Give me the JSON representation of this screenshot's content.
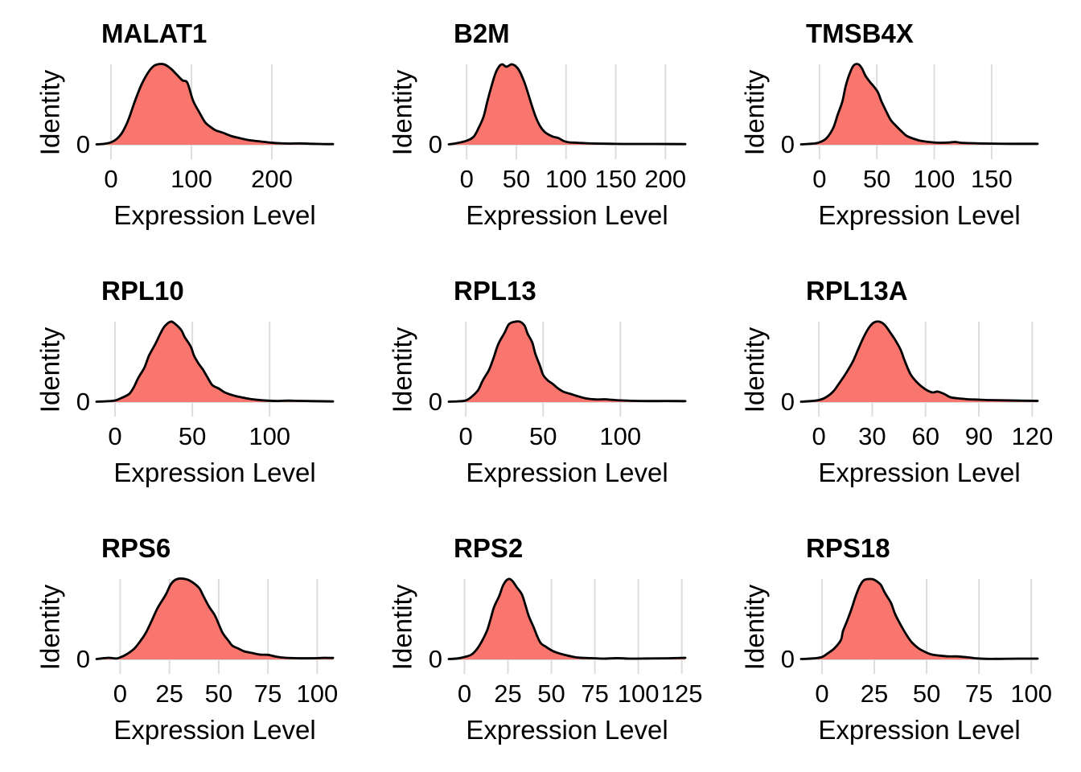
{
  "figure": {
    "kind": "ridge-density-grid",
    "rows": 3,
    "cols": 3,
    "style": {
      "fill_color": "#F8766D",
      "outline_color": "#000000",
      "gridline_color": "#DDDDDD",
      "text_color": "#000000",
      "background": "#FFFFFF"
    }
  },
  "chart_data": [
    {
      "type": "area",
      "title": "MALAT1",
      "xlabel": "Expression Level",
      "ylabel": "Identity",
      "y_ticks": [
        "0"
      ],
      "x_ticks": [
        0,
        100,
        200
      ],
      "xlim": [
        -18,
        276
      ],
      "grid": "vertical-major",
      "legend": "none",
      "density": [
        [
          -18,
          0.005
        ],
        [
          -10,
          0.01
        ],
        [
          0,
          0.03
        ],
        [
          8,
          0.08
        ],
        [
          15,
          0.17
        ],
        [
          22,
          0.32
        ],
        [
          30,
          0.55
        ],
        [
          38,
          0.75
        ],
        [
          45,
          0.88
        ],
        [
          52,
          0.97
        ],
        [
          58,
          1.0
        ],
        [
          66,
          1.0
        ],
        [
          74,
          0.95
        ],
        [
          82,
          0.87
        ],
        [
          89,
          0.8
        ],
        [
          95,
          0.77
        ],
        [
          102,
          0.55
        ],
        [
          110,
          0.4
        ],
        [
          117,
          0.28
        ],
        [
          124,
          0.22
        ],
        [
          130,
          0.18
        ],
        [
          139,
          0.15
        ],
        [
          149,
          0.11
        ],
        [
          159,
          0.085
        ],
        [
          170,
          0.06
        ],
        [
          182,
          0.045
        ],
        [
          195,
          0.03
        ],
        [
          208,
          0.02
        ],
        [
          222,
          0.015
        ],
        [
          235,
          0.017
        ],
        [
          250,
          0.012
        ],
        [
          263,
          0.009
        ],
        [
          276,
          0.008
        ]
      ]
    },
    {
      "type": "area",
      "title": "B2M",
      "xlabel": "Expression Level",
      "ylabel": "Identity",
      "y_ticks": [
        "0"
      ],
      "x_ticks": [
        0,
        50,
        100,
        150,
        200
      ],
      "xlim": [
        -18,
        220
      ],
      "grid": "vertical-major",
      "legend": "none",
      "density": [
        [
          -18,
          0.005
        ],
        [
          -10,
          0.02
        ],
        [
          0,
          0.05
        ],
        [
          7,
          0.1
        ],
        [
          12,
          0.21
        ],
        [
          17,
          0.35
        ],
        [
          21,
          0.55
        ],
        [
          25,
          0.73
        ],
        [
          29,
          0.89
        ],
        [
          33,
          0.98
        ],
        [
          36,
          1.0
        ],
        [
          40,
          0.97
        ],
        [
          45,
          1.0
        ],
        [
          49,
          0.98
        ],
        [
          53,
          0.92
        ],
        [
          58,
          0.78
        ],
        [
          62,
          0.63
        ],
        [
          66,
          0.47
        ],
        [
          70,
          0.33
        ],
        [
          74,
          0.23
        ],
        [
          78,
          0.165
        ],
        [
          82,
          0.13
        ],
        [
          87,
          0.1
        ],
        [
          92,
          0.085
        ],
        [
          98,
          0.045
        ],
        [
          103,
          0.03
        ],
        [
          111,
          0.025
        ],
        [
          119,
          0.02
        ],
        [
          130,
          0.015
        ],
        [
          146,
          0.012
        ],
        [
          162,
          0.01
        ],
        [
          190,
          0.01
        ],
        [
          220,
          0.008
        ]
      ]
    },
    {
      "type": "area",
      "title": "TMSB4X",
      "xlabel": "Expression Level",
      "ylabel": "Identity",
      "y_ticks": [
        "0"
      ],
      "x_ticks": [
        0,
        50,
        100,
        150
      ],
      "xlim": [
        -16,
        190
      ],
      "grid": "vertical-major",
      "legend": "none",
      "density": [
        [
          -16,
          0.005
        ],
        [
          -5,
          0.015
        ],
        [
          0,
          0.03
        ],
        [
          6,
          0.08
        ],
        [
          12,
          0.21
        ],
        [
          16,
          0.38
        ],
        [
          20,
          0.54
        ],
        [
          23,
          0.74
        ],
        [
          27,
          0.91
        ],
        [
          30,
          0.99
        ],
        [
          34,
          1.0
        ],
        [
          37,
          0.95
        ],
        [
          40,
          0.86
        ],
        [
          44,
          0.78
        ],
        [
          47,
          0.73
        ],
        [
          51,
          0.65
        ],
        [
          54,
          0.54
        ],
        [
          58,
          0.42
        ],
        [
          62,
          0.31
        ],
        [
          67,
          0.23
        ],
        [
          72,
          0.16
        ],
        [
          76,
          0.11
        ],
        [
          82,
          0.075
        ],
        [
          88,
          0.05
        ],
        [
          95,
          0.035
        ],
        [
          104,
          0.025
        ],
        [
          113,
          0.028
        ],
        [
          118,
          0.035
        ],
        [
          123,
          0.025
        ],
        [
          132,
          0.02
        ],
        [
          146,
          0.015
        ],
        [
          169,
          0.012
        ],
        [
          190,
          0.012
        ]
      ]
    },
    {
      "type": "area",
      "title": "RPL10",
      "xlabel": "Expression Level",
      "ylabel": "Identity",
      "y_ticks": [
        "0"
      ],
      "x_ticks": [
        0,
        50,
        100
      ],
      "xlim": [
        -12,
        141
      ],
      "grid": "vertical-major",
      "legend": "none",
      "density": [
        [
          -12,
          0.005
        ],
        [
          -6,
          0.01
        ],
        [
          0,
          0.02
        ],
        [
          4,
          0.05
        ],
        [
          9,
          0.1
        ],
        [
          12,
          0.18
        ],
        [
          15,
          0.3
        ],
        [
          19,
          0.43
        ],
        [
          22,
          0.58
        ],
        [
          26,
          0.72
        ],
        [
          29,
          0.84
        ],
        [
          32,
          0.94
        ],
        [
          36,
          1.0
        ],
        [
          39,
          0.97
        ],
        [
          43,
          0.89
        ],
        [
          45,
          0.81
        ],
        [
          49,
          0.69
        ],
        [
          51,
          0.58
        ],
        [
          54,
          0.48
        ],
        [
          57,
          0.4
        ],
        [
          60,
          0.3
        ],
        [
          63,
          0.21
        ],
        [
          67,
          0.17
        ],
        [
          71,
          0.12
        ],
        [
          76,
          0.086
        ],
        [
          81,
          0.062
        ],
        [
          87,
          0.04
        ],
        [
          92,
          0.028
        ],
        [
          99,
          0.018
        ],
        [
          105,
          0.014
        ],
        [
          112,
          0.018
        ],
        [
          119,
          0.015
        ],
        [
          129,
          0.012
        ],
        [
          141,
          0.008
        ]
      ]
    },
    {
      "type": "area",
      "title": "RPL13",
      "xlabel": "Expression Level",
      "ylabel": "Identity",
      "y_ticks": [
        "0"
      ],
      "x_ticks": [
        0,
        50,
        100
      ],
      "xlim": [
        -11,
        142
      ],
      "grid": "vertical-major",
      "legend": "none",
      "density": [
        [
          -11,
          0.005
        ],
        [
          -5,
          0.01
        ],
        [
          0,
          0.02
        ],
        [
          4,
          0.07
        ],
        [
          8,
          0.15
        ],
        [
          11,
          0.27
        ],
        [
          15,
          0.4
        ],
        [
          18,
          0.55
        ],
        [
          21,
          0.72
        ],
        [
          25,
          0.86
        ],
        [
          28,
          0.97
        ],
        [
          32,
          1.0
        ],
        [
          35,
          1.0
        ],
        [
          38,
          0.95
        ],
        [
          40,
          0.85
        ],
        [
          43,
          0.74
        ],
        [
          45,
          0.6
        ],
        [
          48,
          0.45
        ],
        [
          50,
          0.34
        ],
        [
          53,
          0.27
        ],
        [
          56,
          0.23
        ],
        [
          59,
          0.18
        ],
        [
          63,
          0.13
        ],
        [
          68,
          0.1
        ],
        [
          73,
          0.07
        ],
        [
          78,
          0.045
        ],
        [
          84,
          0.033
        ],
        [
          90,
          0.035
        ],
        [
          95,
          0.028
        ],
        [
          102,
          0.02
        ],
        [
          110,
          0.015
        ],
        [
          120,
          0.013
        ],
        [
          130,
          0.014
        ],
        [
          142,
          0.012
        ]
      ]
    },
    {
      "type": "area",
      "title": "RPL13A",
      "xlabel": "Expression Level",
      "ylabel": "Identity",
      "y_ticks": [
        "0"
      ],
      "x_ticks": [
        0,
        30,
        60,
        90,
        120
      ],
      "xlim": [
        -10,
        123
      ],
      "grid": "vertical-major",
      "legend": "none",
      "density": [
        [
          -10,
          0.005
        ],
        [
          -5,
          0.012
        ],
        [
          0,
          0.025
        ],
        [
          4,
          0.06
        ],
        [
          8,
          0.13
        ],
        [
          11,
          0.22
        ],
        [
          15,
          0.35
        ],
        [
          19,
          0.5
        ],
        [
          22,
          0.65
        ],
        [
          25,
          0.8
        ],
        [
          28,
          0.92
        ],
        [
          31,
          0.99
        ],
        [
          34,
          1.0
        ],
        [
          37,
          0.96
        ],
        [
          40,
          0.87
        ],
        [
          43,
          0.77
        ],
        [
          46,
          0.65
        ],
        [
          48,
          0.53
        ],
        [
          50,
          0.42
        ],
        [
          52,
          0.33
        ],
        [
          55,
          0.25
        ],
        [
          58,
          0.19
        ],
        [
          61,
          0.145
        ],
        [
          64,
          0.12
        ],
        [
          67,
          0.13
        ],
        [
          71,
          0.095
        ],
        [
          74,
          0.06
        ],
        [
          79,
          0.045
        ],
        [
          84,
          0.035
        ],
        [
          90,
          0.03
        ],
        [
          96,
          0.025
        ],
        [
          104,
          0.022
        ],
        [
          113,
          0.018
        ],
        [
          123,
          0.015
        ]
      ]
    },
    {
      "type": "area",
      "title": "RPS6",
      "xlabel": "Expression Level",
      "ylabel": "Identity",
      "y_ticks": [
        "0"
      ],
      "x_ticks": [
        0,
        25,
        50,
        75,
        100
      ],
      "xlim": [
        -12,
        108
      ],
      "grid": "vertical-major",
      "legend": "none",
      "density": [
        [
          -12,
          0.005
        ],
        [
          -6,
          0.02
        ],
        [
          -2,
          0.012
        ],
        [
          0,
          0.025
        ],
        [
          3,
          0.06
        ],
        [
          7,
          0.13
        ],
        [
          10,
          0.22
        ],
        [
          13,
          0.33
        ],
        [
          16,
          0.48
        ],
        [
          19,
          0.64
        ],
        [
          23,
          0.8
        ],
        [
          26,
          0.945
        ],
        [
          29,
          1.0
        ],
        [
          33,
          1.0
        ],
        [
          36,
          0.97
        ],
        [
          40,
          0.89
        ],
        [
          42,
          0.8
        ],
        [
          45,
          0.66
        ],
        [
          48,
          0.55
        ],
        [
          50,
          0.44
        ],
        [
          52,
          0.33
        ],
        [
          55,
          0.23
        ],
        [
          57,
          0.17
        ],
        [
          60,
          0.135
        ],
        [
          63,
          0.1
        ],
        [
          67,
          0.08
        ],
        [
          71,
          0.06
        ],
        [
          75,
          0.057
        ],
        [
          79,
          0.035
        ],
        [
          84,
          0.02
        ],
        [
          90,
          0.015
        ],
        [
          98,
          0.015
        ],
        [
          104,
          0.02
        ],
        [
          108,
          0.018
        ]
      ]
    },
    {
      "type": "area",
      "title": "RPS2",
      "xlabel": "Expression Level",
      "ylabel": "Identity",
      "y_ticks": [
        "0"
      ],
      "x_ticks": [
        0,
        25,
        50,
        75,
        100,
        125
      ],
      "xlim": [
        -9,
        127
      ],
      "grid": "vertical-major",
      "legend": "none",
      "density": [
        [
          -9,
          0.005
        ],
        [
          -4,
          0.012
        ],
        [
          0,
          0.03
        ],
        [
          4,
          0.06
        ],
        [
          7,
          0.124
        ],
        [
          10,
          0.226
        ],
        [
          13,
          0.36
        ],
        [
          15,
          0.5
        ],
        [
          17,
          0.65
        ],
        [
          20,
          0.79
        ],
        [
          22,
          0.91
        ],
        [
          24,
          0.98
        ],
        [
          26,
          1.0
        ],
        [
          28,
          0.965
        ],
        [
          30,
          0.9
        ],
        [
          33,
          0.81
        ],
        [
          35,
          0.68
        ],
        [
          37,
          0.54
        ],
        [
          40,
          0.39
        ],
        [
          42,
          0.28
        ],
        [
          44,
          0.2
        ],
        [
          47,
          0.155
        ],
        [
          50,
          0.114
        ],
        [
          53,
          0.086
        ],
        [
          57,
          0.06
        ],
        [
          62,
          0.035
        ],
        [
          66,
          0.022
        ],
        [
          73,
          0.016
        ],
        [
          80,
          0.01
        ],
        [
          88,
          0.016
        ],
        [
          95,
          0.01
        ],
        [
          105,
          0.012
        ],
        [
          115,
          0.014
        ],
        [
          127,
          0.02
        ]
      ]
    },
    {
      "type": "area",
      "title": "RPS18",
      "xlabel": "Expression Level",
      "ylabel": "Identity",
      "y_ticks": [
        "0"
      ],
      "x_ticks": [
        0,
        25,
        50,
        75,
        100
      ],
      "xlim": [
        -10,
        103
      ],
      "grid": "vertical-major",
      "legend": "none",
      "density": [
        [
          -10,
          0.005
        ],
        [
          -4,
          0.013
        ],
        [
          0,
          0.03
        ],
        [
          3,
          0.08
        ],
        [
          6,
          0.14
        ],
        [
          9,
          0.24
        ],
        [
          10,
          0.35
        ],
        [
          12,
          0.48
        ],
        [
          14,
          0.62
        ],
        [
          16,
          0.78
        ],
        [
          18,
          0.91
        ],
        [
          20,
          0.985
        ],
        [
          23,
          1.0
        ],
        [
          25,
          0.99
        ],
        [
          28,
          0.93
        ],
        [
          30,
          0.83
        ],
        [
          33,
          0.7
        ],
        [
          35,
          0.56
        ],
        [
          38,
          0.41
        ],
        [
          41,
          0.28
        ],
        [
          43,
          0.21
        ],
        [
          46,
          0.14
        ],
        [
          49,
          0.096
        ],
        [
          52,
          0.064
        ],
        [
          56,
          0.048
        ],
        [
          60,
          0.038
        ],
        [
          64,
          0.038
        ],
        [
          67,
          0.032
        ],
        [
          70,
          0.025
        ],
        [
          74,
          0.013
        ],
        [
          79,
          0.007
        ],
        [
          85,
          0.007
        ],
        [
          94,
          0.01
        ],
        [
          103,
          0.01
        ]
      ]
    }
  ]
}
